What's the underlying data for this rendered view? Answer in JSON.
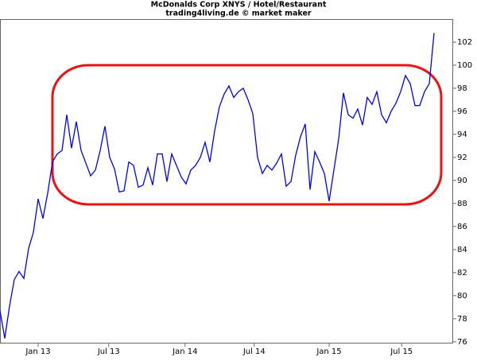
{
  "chart_data": {
    "type": "line",
    "title": "McDonalds Corp XNYS / Hotel/Restaurant",
    "subtitle": "trading4living.de © market maker",
    "series": [
      {
        "color": "#0000ff",
        "values": [
          78.7,
          76.3,
          79.1,
          81.4,
          82.1,
          81.5,
          84.1,
          85.5,
          88.4,
          86.7,
          88.9,
          91.6,
          92.3,
          92.6,
          95.7,
          92.8,
          95.1,
          92.6,
          91.5,
          90.4,
          90.9,
          92.6,
          94.7,
          92,
          91,
          89,
          89.1,
          91.6,
          91.3,
          89.4,
          89.6,
          91.1,
          89.6,
          92.3,
          92.3,
          89.9,
          92.3,
          91.3,
          90.3,
          89.7,
          90.9,
          91.3,
          92,
          93.3,
          91.6,
          94.3,
          96.4,
          97.5,
          98.2,
          97.2,
          97.7,
          98,
          97,
          95.8,
          92,
          90.6,
          91.3,
          90.9,
          91.5,
          92.3,
          89.5,
          89.9,
          92.2,
          93.8,
          94.9,
          89.2,
          92.5,
          91.6,
          90.6,
          88.2,
          90.9,
          93.6,
          97.6,
          95.7,
          95.4,
          96.2,
          94.8,
          97.2,
          96.6,
          97.7,
          95.7,
          95,
          96,
          96.7,
          97.7,
          99.1,
          98.4,
          96.5,
          96.5,
          97.7,
          98.4,
          102.8
        ]
      }
    ],
    "xlim": [
      0,
      95
    ],
    "xticks": [
      {
        "value": 8,
        "label": "Jan 13"
      },
      {
        "value": 22.8,
        "label": "Jul 13"
      },
      {
        "value": 38.8,
        "label": "Jan 14"
      },
      {
        "value": 53.3,
        "label": "Jul 14"
      },
      {
        "value": 69,
        "label": "Jan 15"
      },
      {
        "value": 84.2,
        "label": "Jul 15"
      }
    ],
    "ylim": [
      75.85,
      104
    ],
    "yticks": [
      76,
      78,
      80,
      82,
      84,
      86,
      88,
      90,
      92,
      94,
      96,
      98,
      100,
      102
    ],
    "grid": false
  }
}
